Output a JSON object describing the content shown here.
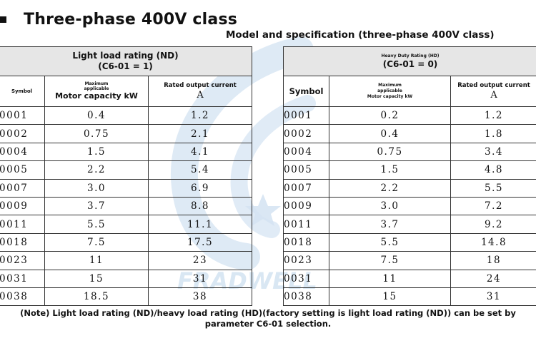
{
  "heading": "Three-phase 400V class",
  "subtitle": "Model and specification (three-phase 400V class)",
  "watermark_text": "FRADWELL",
  "left_table": {
    "rating_line1": "Light load rating (ND)",
    "rating_line2": "(C6-01 = 1)",
    "symbol_label": "Symbol",
    "cap_small1": "Maximum",
    "cap_small2": "applicable",
    "cap_big": "Motor capacity kW",
    "rated_label": "Rated output current",
    "unit": "A",
    "rows": [
      {
        "symbol": "0001",
        "capacity": "0.4",
        "current": "1.2"
      },
      {
        "symbol": "0002",
        "capacity": "0.75",
        "current": "2.1"
      },
      {
        "symbol": "0004",
        "capacity": "1.5",
        "current": "4.1"
      },
      {
        "symbol": "0005",
        "capacity": "2.2",
        "current": "5.4"
      },
      {
        "symbol": "0007",
        "capacity": "3.0",
        "current": "6.9"
      },
      {
        "symbol": "0009",
        "capacity": "3.7",
        "current": "8.8"
      },
      {
        "symbol": "0011",
        "capacity": "5.5",
        "current": "11.1"
      },
      {
        "symbol": "0018",
        "capacity": "7.5",
        "current": "17.5"
      },
      {
        "symbol": "0023",
        "capacity": "11",
        "current": "23"
      },
      {
        "symbol": "0031",
        "capacity": "15",
        "current": "31"
      },
      {
        "symbol": "0038",
        "capacity": "18.5",
        "current": "38"
      }
    ]
  },
  "right_table": {
    "rating_line1": "Heavy Duty Rating (HD)",
    "rating_line2": "(C6-01 = 0)",
    "symbol_label": "Symbol",
    "cap_small1": "Maximum",
    "cap_small2": "applicable",
    "cap_small3": "Motor capacity kW",
    "rated_label": "Rated output current",
    "unit": "A",
    "rows": [
      {
        "symbol": "0001",
        "capacity": "0.2",
        "current": "1.2"
      },
      {
        "symbol": "0002",
        "capacity": "0.4",
        "current": "1.8"
      },
      {
        "symbol": "0004",
        "capacity": "0.75",
        "current": "3.4"
      },
      {
        "symbol": "0005",
        "capacity": "1.5",
        "current": "4.8"
      },
      {
        "symbol": "0007",
        "capacity": "2.2",
        "current": "5.5"
      },
      {
        "symbol": "0009",
        "capacity": "3.0",
        "current": "7.2"
      },
      {
        "symbol": "0011",
        "capacity": "3.7",
        "current": "9.2"
      },
      {
        "symbol": "0018",
        "capacity": "5.5",
        "current": "14.8"
      },
      {
        "symbol": "0023",
        "capacity": "7.5",
        "current": "18"
      },
      {
        "symbol": "0031",
        "capacity": "11",
        "current": "24"
      },
      {
        "symbol": "0038",
        "capacity": "15",
        "current": "31"
      }
    ]
  },
  "note_line1": "(Note) Light load rating (ND)/heavy load rating (HD)(factory setting is light load rating (ND)) can be set by",
  "note_line2": "parameter C6-01 selection.",
  "colors": {
    "header_bg": "#e6e6e6",
    "watermark": "#cfe2f3",
    "border": "#333333"
  }
}
